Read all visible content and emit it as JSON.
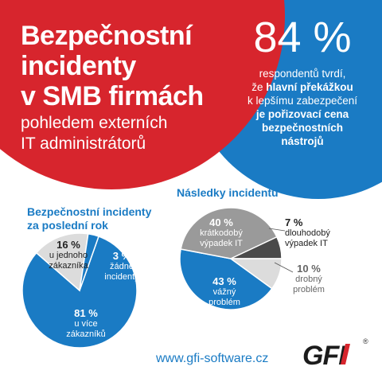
{
  "title": {
    "line1": "Bezpečnostní",
    "line2": "incidenty",
    "line3": "v SMB firmách",
    "sub1": "pohledem externích",
    "sub2": "IT administrátorů"
  },
  "highlight": {
    "value": "84 %",
    "line1": "respondentů tvrdí,",
    "line2_pre": "že ",
    "line2_bold": "hlavní překážkou",
    "line3": "k lepšímu zabezpečení",
    "line4": "je pořizovací cena",
    "line5": "bezpečnostních",
    "line6": "nástrojů"
  },
  "chart_data": [
    {
      "type": "pie",
      "title": "Bezpečnostní incidenty za poslední rok",
      "slices": [
        {
          "label": "u více zákazníků",
          "value": 81,
          "display": "81 %",
          "color": "#1a7bc4"
        },
        {
          "label": "u jednoho zákazníka",
          "value": 16,
          "display": "16 %",
          "color": "#dcdcdc"
        },
        {
          "label": "žádné incidenty",
          "value": 3,
          "display": "3 %",
          "color": "#1a7bc4"
        }
      ]
    },
    {
      "type": "pie",
      "title": "Následky incidentů",
      "slices": [
        {
          "label": "vážný problém",
          "value": 43,
          "display": "43 %",
          "color": "#1a7bc4"
        },
        {
          "label": "krátkodobý výpadek IT",
          "value": 40,
          "display": "40 %",
          "color": "#9a9a9a"
        },
        {
          "label": "dlouhodobý výpadek IT",
          "value": 7,
          "display": "7 %",
          "color": "#4a4a4a"
        },
        {
          "label": "drobný problém",
          "value": 10,
          "display": "10 %",
          "color": "#dcdcdc"
        }
      ]
    }
  ],
  "labels": {
    "c1_title1": "Bezpečnostní incidenty",
    "c1_title2": "za poslední rok",
    "c1_a_pct": "16 %",
    "c1_a_1": "u jednoho",
    "c1_a_2": "zákazníka",
    "c1_b_pct": "3 %",
    "c1_b_1": "žádné",
    "c1_b_2": "incidenty",
    "c1_c_pct": "81 %",
    "c1_c_1": "u více",
    "c1_c_2": "zákazníků",
    "c2_title": "Následky incidentů",
    "c2_a_pct": "40 %",
    "c2_a_1": "krátkodobý",
    "c2_a_2": "výpadek IT",
    "c2_b_pct": "7 %",
    "c2_b_1": "dlouhodobý",
    "c2_b_2": "výpadek IT",
    "c2_c_pct": "10 %",
    "c2_c_1": "drobný",
    "c2_c_2": "problém",
    "c2_d_pct": "43 %",
    "c2_d_1": "vážný",
    "c2_d_2": "problém"
  },
  "footer": {
    "url": "www.gfi-software.cz",
    "logo": "GFI",
    "registered": "®"
  },
  "colors": {
    "red": "#d7252d",
    "blue": "#1a7bc4",
    "light_gray": "#dcdcdc",
    "mid_gray": "#9a9a9a",
    "dark_gray": "#4a4a4a"
  }
}
